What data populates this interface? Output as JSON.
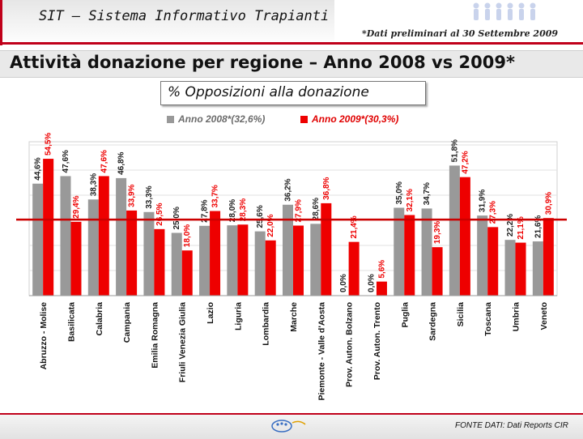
{
  "header": {
    "sit_title": "SIT – Sistema Informativo Trapianti",
    "preliminary_note": "*Dati preliminari al 30 Settembre 2009",
    "main_title": "Attività donazione per regione – Anno 2008 vs 2009*",
    "brand_color": "#c0001a"
  },
  "footer": {
    "source": "FONTE DATI: Dati Reports CIR"
  },
  "chart_data": {
    "type": "bar",
    "title": "% Opposizioni alla donazione",
    "categories": [
      "Abruzzo - Molise",
      "Basilicata",
      "Calabria",
      "Campania",
      "Emilia Romagna",
      "Friuli Venezia Giulia",
      "Lazio",
      "Liguria",
      "Lombardia",
      "Marche",
      "Piemonte - Valle d'Aosta",
      "Prov. Auton. Bolzano",
      "Prov. Auton. Trento",
      "Puglia",
      "Sardegna",
      "Sicilia",
      "Toscana",
      "Umbria",
      "Veneto"
    ],
    "series": [
      {
        "name": "Anno 2008*(32,6%)",
        "color": "#999999",
        "label_color": "#222222",
        "values": [
          44.6,
          47.6,
          38.3,
          46.8,
          33.3,
          25.0,
          27.8,
          28.0,
          25.6,
          36.2,
          28.6,
          0.0,
          0.0,
          35.0,
          34.7,
          51.8,
          31.9,
          22.2,
          21.6
        ]
      },
      {
        "name": "Anno 2009*(30,3%)",
        "color": "#ee0000",
        "label_color": "#ee0000",
        "values": [
          54.5,
          29.4,
          47.6,
          33.9,
          26.5,
          18.0,
          33.7,
          28.3,
          22.0,
          27.9,
          36.8,
          21.4,
          5.6,
          32.1,
          19.3,
          47.2,
          27.3,
          21.1,
          30.9
        ]
      }
    ],
    "value_labels": [
      [
        "44,6%",
        "47,6%",
        "38,3%",
        "46,8%",
        "33,3%",
        "25,0%",
        "27,8%",
        "28,0%",
        "25,6%",
        "36,2%",
        "28,6%",
        "0,0%",
        "0,0%",
        "35,0%",
        "34,7%",
        "51,8%",
        "31,9%",
        "22,2%",
        "21,6%"
      ],
      [
        "54,5%",
        "29,4%",
        "47,6%",
        "33,9%",
        "26,5%",
        "18,0%",
        "33,7%",
        "28,3%",
        "22,0%",
        "27,9%",
        "36,8%",
        "21,4%",
        "5,6%",
        "32,1%",
        "19,3%",
        "47,2%",
        "27,3%",
        "21,1%",
        "30,9%"
      ]
    ],
    "reference_line": 30.3,
    "reference_line_color": "#cc0000",
    "ylim": [
      0,
      60
    ],
    "grid": true,
    "legend_position": "top"
  }
}
